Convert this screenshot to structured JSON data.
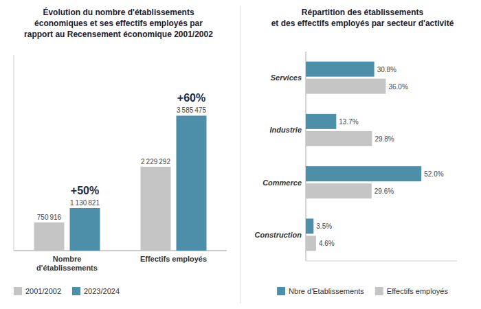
{
  "chart_data": [
    {
      "type": "bar",
      "title": "Évolution du nombre d'établissements\néconomiques et ses effectifs employés par\nrapport au Recensement économique 2001/2002",
      "categories": [
        "Nombre\nd'établissements",
        "Effectifs employés"
      ],
      "series": [
        {
          "name": "2001/2002",
          "color": "#c5c5c5",
          "values": [
            750916,
            2229292
          ],
          "value_labels": [
            "750 916",
            "2 229 292"
          ]
        },
        {
          "name": "2023/2024",
          "color": "#4d8fa8",
          "values": [
            1130821,
            3585475
          ],
          "value_labels": [
            "1 130 821",
            "3 585 475"
          ]
        }
      ],
      "annotations": [
        "+50%",
        "+60%"
      ],
      "ylim": [
        0,
        5198938.75
      ],
      "data_labels": true,
      "tick_labels": "x",
      "grid": false,
      "legend": "bottom"
    },
    {
      "type": "bar",
      "orientation": "horizontal",
      "title": "Répartition des établissements\net des effectifs employés par secteur d'activité",
      "categories": [
        "Services",
        "Industrie",
        "Commerce",
        "Construction"
      ],
      "series": [
        {
          "name": "Nbre d'Etablissements",
          "color": "#4d8fa8",
          "values": [
            30.8,
            13.7,
            52.0,
            3.5
          ],
          "value_labels": [
            "30.8%",
            "13.7%",
            "52.0%",
            "3.5%"
          ]
        },
        {
          "name": "Effectifs employés",
          "color": "#c5c5c5",
          "values": [
            36.0,
            29.8,
            29.6,
            4.6
          ],
          "value_labels": [
            "36.0%",
            "29.8%",
            "29.6%",
            "4.6%"
          ]
        }
      ],
      "xlim": [
        0,
        68
      ],
      "data_labels": true,
      "tick_labels": "y",
      "grid": false,
      "legend": "bottom"
    }
  ]
}
